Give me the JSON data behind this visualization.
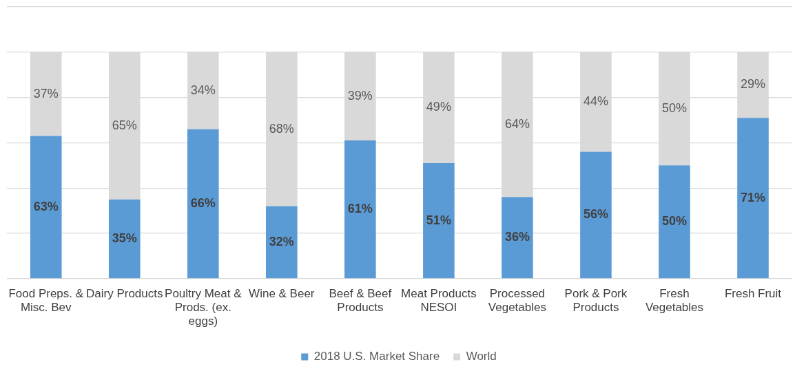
{
  "chart_data": {
    "type": "bar",
    "stacked": true,
    "categories": [
      "Food Preps. & Misc. Bev",
      "Dairy Products",
      "Poultry Meat & Prods. (ex. eggs)",
      "Wine & Beer",
      "Beef & Beef Products",
      "Meat Products NESOI",
      "Processed Vegetables",
      "Pork & Pork Products",
      "Fresh Vegetables",
      "Fresh Fruit"
    ],
    "series": [
      {
        "name": "2018 U.S. Market Share",
        "color": "#5b9bd5",
        "values": [
          63,
          35,
          66,
          32,
          61,
          51,
          36,
          56,
          50,
          71
        ],
        "value_labels": [
          "63%",
          "35%",
          "66%",
          "32%",
          "61%",
          "51%",
          "36%",
          "56%",
          "50%",
          "71%"
        ]
      },
      {
        "name": "World",
        "color": "#d9d9d9",
        "values": [
          37,
          65,
          34,
          68,
          39,
          49,
          64,
          44,
          50,
          29
        ],
        "value_labels": [
          "37%",
          "65%",
          "34%",
          "68%",
          "39%",
          "49%",
          "64%",
          "44%",
          "50%",
          "29%"
        ]
      }
    ],
    "ylim": [
      0,
      120
    ],
    "yticks": [
      {
        "value": 0,
        "label": null
      },
      {
        "value": 20,
        "label": null
      },
      {
        "value": 40,
        "label": null
      },
      {
        "value": 60,
        "label": null
      },
      {
        "value": 80,
        "label": null
      },
      {
        "value": 100,
        "label": null
      },
      {
        "value": 120,
        "label": null
      }
    ],
    "tick_labels": "x",
    "grid": "y",
    "legend": "bottom"
  }
}
